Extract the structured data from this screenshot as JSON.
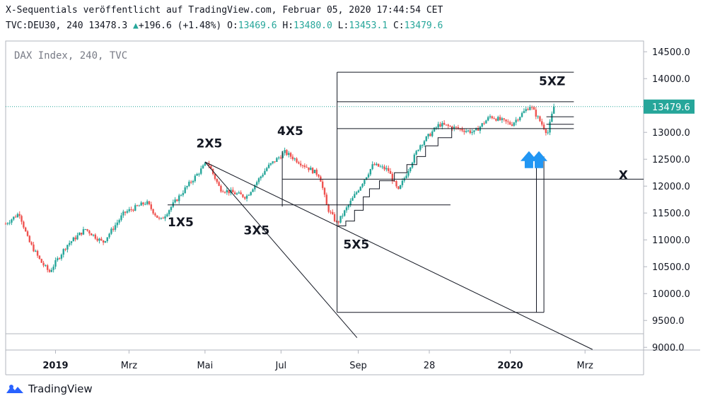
{
  "header": {
    "line1": "X-Sequentials veröffentlicht auf TradingView.com, Februar 05, 2020 17:44:54 CET",
    "symbol": "TVC:DEU30, 240",
    "last": "13478.3",
    "change_arrow": "▲",
    "change": "+196.6 (+1.48%)",
    "o_label": "O:",
    "o_value": "13469.6",
    "h_label": "H:",
    "h_value": "13480.0",
    "l_label": "L:",
    "l_value": "13453.1",
    "c_label": "C:",
    "c_value": "13479.6"
  },
  "footer": {
    "brand": "TradingView",
    "logo_icon": "tradingview-logo-icon"
  },
  "chart_data": {
    "type": "candlestick",
    "legend_title": "DAX Index, 240, TVC",
    "ylim": [
      8950,
      14700
    ],
    "y_ticks": [
      {
        "value": 9000,
        "label": "9000.0"
      },
      {
        "value": 9500,
        "label": "9500.0"
      },
      {
        "value": 10000,
        "label": "10000.0"
      },
      {
        "value": 10500,
        "label": "10500.0"
      },
      {
        "value": 11000,
        "label": "11000.0"
      },
      {
        "value": 11500,
        "label": "11500.0"
      },
      {
        "value": 12000,
        "label": "12000.0"
      },
      {
        "value": 12500,
        "label": "12500.0"
      },
      {
        "value": 13000,
        "label": "13000.0"
      },
      {
        "value": 13500,
        "label": "13500.0"
      },
      {
        "value": 14000,
        "label": "14000.0"
      },
      {
        "value": 14500,
        "label": "14500.0"
      }
    ],
    "x_ticks": [
      {
        "date": "2019-01-01",
        "label": "2019",
        "bold": true
      },
      {
        "date": "2019-03-01",
        "label": "Mrz",
        "bold": false
      },
      {
        "date": "2019-05-01",
        "label": "Mai",
        "bold": false
      },
      {
        "date": "2019-07-01",
        "label": "Jul",
        "bold": false
      },
      {
        "date": "2019-09-01",
        "label": "Sep",
        "bold": false
      },
      {
        "date": "2019-10-28",
        "label": "28",
        "bold": false
      },
      {
        "date": "2020-01-01",
        "label": "2020",
        "bold": true
      },
      {
        "date": "2020-03-01",
        "label": "Mrz",
        "bold": false
      }
    ],
    "xlim": [
      "2018-11-22",
      "2020-04-17"
    ],
    "current_price": {
      "value": 13479.6,
      "label": "13479.6",
      "color": "#26a69a"
    },
    "colors": {
      "up": "#26a69a",
      "down": "#ef5350",
      "drawing": "#131722"
    },
    "price_path": [
      [
        "2018-11-22",
        11300
      ],
      [
        "2018-12-03",
        11500
      ],
      [
        "2018-12-10",
        11000
      ],
      [
        "2018-12-20",
        10600
      ],
      [
        "2018-12-27",
        10400
      ],
      [
        "2019-01-10",
        10900
      ],
      [
        "2019-01-25",
        11200
      ],
      [
        "2019-02-08",
        10950
      ],
      [
        "2019-02-25",
        11500
      ],
      [
        "2019-03-15",
        11700
      ],
      [
        "2019-03-26",
        11350
      ],
      [
        "2019-04-15",
        11950
      ],
      [
        "2019-05-03",
        12450
      ],
      [
        "2019-05-13",
        11950
      ],
      [
        "2019-06-03",
        11800
      ],
      [
        "2019-06-20",
        12350
      ],
      [
        "2019-07-04",
        12630
      ],
      [
        "2019-07-22",
        12350
      ],
      [
        "2019-08-01",
        12200
      ],
      [
        "2019-08-07",
        11600
      ],
      [
        "2019-08-15",
        11300
      ],
      [
        "2019-08-27",
        11750
      ],
      [
        "2019-09-13",
        12400
      ],
      [
        "2019-09-25",
        12300
      ],
      [
        "2019-10-03",
        11900
      ],
      [
        "2019-10-20",
        12750
      ],
      [
        "2019-11-05",
        13150
      ],
      [
        "2019-12-03",
        13000
      ],
      [
        "2019-12-16",
        13300
      ],
      [
        "2020-01-02",
        13150
      ],
      [
        "2020-01-17",
        13500
      ],
      [
        "2020-01-31",
        12980
      ],
      [
        "2020-02-05",
        13479
      ]
    ],
    "drawings": {
      "lines": [
        {
          "from": [
            "2019-05-01",
            12450
          ],
          "to": [
            "2019-08-31",
            9180
          ]
        },
        {
          "from": [
            "2019-05-01",
            12450
          ],
          "to": [
            "2020-03-07",
            8960
          ]
        },
        {
          "from": [
            "2019-04-01",
            11650
          ],
          "to": [
            "2019-11-14",
            11650
          ]
        },
        {
          "from": [
            "2019-07-02",
            12130
          ],
          "to": [
            "2020-04-17",
            12130
          ]
        },
        {
          "from": [
            "2019-08-15",
            14120
          ],
          "to": [
            "2020-02-21",
            14120
          ]
        },
        {
          "from": [
            "2019-08-15",
            13570
          ],
          "to": [
            "2020-02-21",
            13570
          ]
        },
        {
          "from": [
            "2019-08-15",
            13070
          ],
          "to": [
            "2020-02-21",
            13070
          ]
        },
        {
          "from": [
            "2020-01-30",
            13150
          ],
          "to": [
            "2020-02-21",
            13150
          ]
        },
        {
          "from": [
            "2020-01-30",
            13290
          ],
          "to": [
            "2020-02-21",
            13290
          ]
        },
        {
          "from": [
            "2019-08-15",
            9650
          ],
          "to": [
            "2020-01-28",
            9650
          ]
        },
        {
          "from": [
            "2019-08-15",
            9650
          ],
          "to": [
            "2019-08-15",
            14120
          ]
        },
        {
          "from": [
            "2019-07-02",
            11620
          ],
          "to": [
            "2019-07-02",
            12650
          ]
        },
        {
          "from": [
            "2020-01-22",
            9650
          ],
          "to": [
            "2020-01-22",
            12550
          ]
        },
        {
          "from": [
            "2020-01-28",
            9650
          ],
          "to": [
            "2020-01-28",
            12550
          ]
        }
      ],
      "arrows": [
        {
          "date": "2020-01-16",
          "value": 12650
        },
        {
          "date": "2020-01-24",
          "value": 12650
        }
      ],
      "labels": [
        {
          "text": "1X5",
          "date": "2019-04-01",
          "value": 11250
        },
        {
          "text": "2X5",
          "date": "2019-04-24",
          "value": 12720
        },
        {
          "text": "3X5",
          "date": "2019-06-01",
          "value": 11100
        },
        {
          "text": "4X5",
          "date": "2019-06-28",
          "value": 12950
        },
        {
          "text": "5X5",
          "date": "2019-08-20",
          "value": 10840
        },
        {
          "text": "5XZ",
          "date": "2020-01-24",
          "value": 13880
        },
        {
          "text": "X",
          "date": "2020-03-28",
          "value": 12130
        }
      ]
    }
  }
}
